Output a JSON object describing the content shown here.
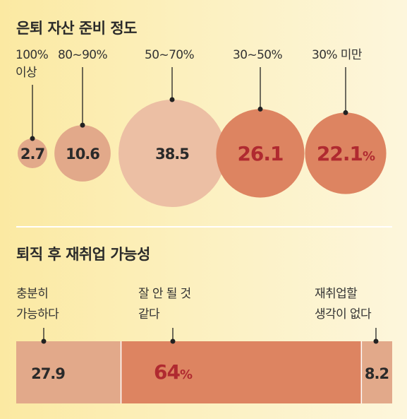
{
  "chart_data": [
    {
      "type": "bubble",
      "title": "은퇴 자산 준비 정도",
      "categories": [
        "100% 이상",
        "80~90%",
        "50~70%",
        "30~50%",
        "30% 미만"
      ],
      "category_lines": [
        [
          "100%",
          "이상"
        ],
        [
          "80~90%"
        ],
        [
          "50~70%"
        ],
        [
          "30~50%"
        ],
        [
          "30% 미만"
        ]
      ],
      "values": [
        2.7,
        10.6,
        38.5,
        26.1,
        22.1
      ],
      "value_labels": [
        "2.7",
        "10.6",
        "38.5",
        "26.1",
        "22.1"
      ],
      "unit": "%",
      "colors": [
        "#e2a98a",
        "#e2a98a",
        "#ecbfa4",
        "#dd8461",
        "#dd8461"
      ]
    },
    {
      "type": "stacked-bar",
      "title": "퇴직 후 재취업 가능성",
      "categories": [
        "충분히 가능하다",
        "잘 안 될 것 같다",
        "재취업할 생각이 없다"
      ],
      "category_lines": [
        [
          "충분히",
          "가능하다"
        ],
        [
          "잘 안 될 것",
          "같다"
        ],
        [
          "재취업할",
          "생각이 없다"
        ]
      ],
      "values": [
        27.9,
        64,
        8.2
      ],
      "value_labels": [
        "27.9",
        "64",
        "8.2"
      ],
      "unit": "%",
      "colors": [
        "#e2a98a",
        "#dd8461",
        "#e2a98a"
      ]
    }
  ],
  "colors": {
    "text": "#2a2a2a",
    "highlight_text": "#b02a30",
    "leader_line": "#222222",
    "divider": "#ffffff"
  }
}
